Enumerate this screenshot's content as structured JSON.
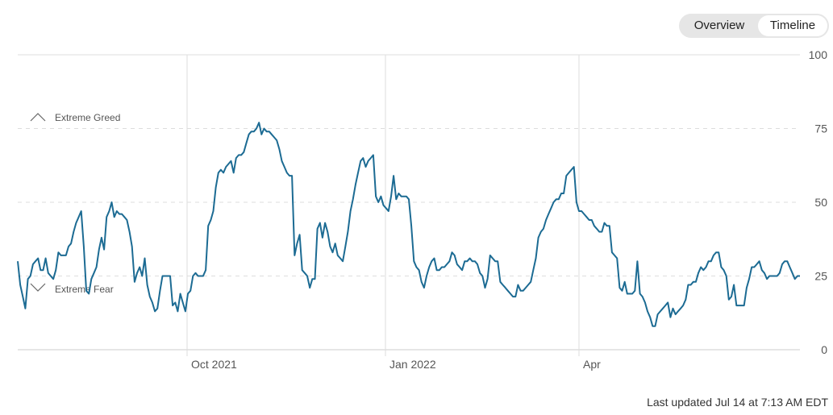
{
  "toggle": {
    "overview_label": "Overview",
    "timeline_label": "Timeline",
    "selected": "Timeline"
  },
  "footer": {
    "last_updated": "Last updated Jul 14 at 7:13 AM EDT"
  },
  "chart_data": {
    "type": "line",
    "ylim": [
      0,
      100
    ],
    "y_ticks": [
      0,
      25,
      50,
      75,
      100
    ],
    "x_tick_labels": [
      "Oct 2021",
      "Jan 2022",
      "Apr"
    ],
    "grid": true,
    "annotations": {
      "greed": "Extreme Greed",
      "fear": "Extreme Fear"
    },
    "colors": {
      "line": "#1c6b93",
      "grid": "#dddddd",
      "axis": "#cccccc"
    },
    "series": [
      {
        "values": [
          30,
          22,
          18,
          14,
          24,
          25,
          29,
          30,
          31,
          27,
          27,
          31,
          26,
          25,
          24,
          27,
          33,
          32,
          32,
          32,
          35,
          36,
          40,
          43,
          45,
          47,
          35,
          20,
          19,
          24,
          26,
          28,
          34,
          38,
          34,
          45,
          47,
          50,
          45,
          47,
          46,
          46,
          45,
          44,
          40,
          35,
          23,
          26,
          28,
          25,
          31,
          22,
          18,
          16,
          13,
          14,
          20,
          25,
          25,
          25,
          25,
          15,
          16,
          13,
          19,
          16,
          13,
          19,
          20,
          25,
          26,
          25,
          25,
          25,
          27,
          42,
          44,
          47,
          55,
          60,
          61,
          60,
          62,
          63,
          64,
          60,
          65,
          66,
          66,
          67,
          70,
          73,
          74,
          74,
          75,
          77,
          73,
          75,
          74,
          74,
          73,
          72,
          71,
          68,
          64,
          62,
          60,
          59,
          59,
          32,
          36,
          39,
          27,
          26,
          25,
          21,
          24,
          24,
          41,
          43,
          38,
          43,
          40,
          35,
          33,
          36,
          32,
          31,
          30,
          35,
          40,
          47,
          51,
          56,
          60,
          64,
          65,
          62,
          64,
          65,
          66,
          52,
          50,
          52,
          49,
          48,
          47,
          52,
          59,
          51,
          53,
          52,
          52,
          52,
          51,
          42,
          30,
          28,
          27,
          23,
          21,
          25,
          28,
          30,
          31,
          27,
          27,
          28,
          28,
          29,
          30,
          33,
          32,
          29,
          28,
          27,
          30,
          30,
          31,
          30,
          30,
          29,
          26,
          25,
          21,
          24,
          32,
          31,
          30,
          30,
          23,
          22,
          21,
          20,
          19,
          18,
          18,
          22,
          20,
          20,
          21,
          22,
          23,
          27,
          31,
          38,
          40,
          41,
          44,
          46,
          48,
          50,
          51,
          51,
          53,
          53,
          59,
          60,
          61,
          62,
          50,
          47,
          47,
          46,
          45,
          44,
          44,
          42,
          41,
          40,
          40,
          43,
          42,
          42,
          33,
          32,
          31,
          21,
          20,
          23,
          19,
          19,
          19,
          20,
          30,
          19,
          18,
          16,
          13,
          11,
          8,
          8,
          12,
          13,
          14,
          15,
          16,
          11,
          14,
          12,
          13,
          14,
          15,
          17,
          22,
          22,
          23,
          23,
          26,
          28,
          27,
          28,
          30,
          30,
          32,
          33,
          33,
          28,
          27,
          25,
          17,
          18,
          22,
          15,
          15,
          15,
          15,
          21,
          24,
          28,
          28,
          29,
          30,
          27,
          26,
          24,
          25,
          25,
          25,
          25,
          26,
          29,
          30,
          30,
          28,
          26,
          24,
          25,
          25
        ]
      }
    ]
  }
}
